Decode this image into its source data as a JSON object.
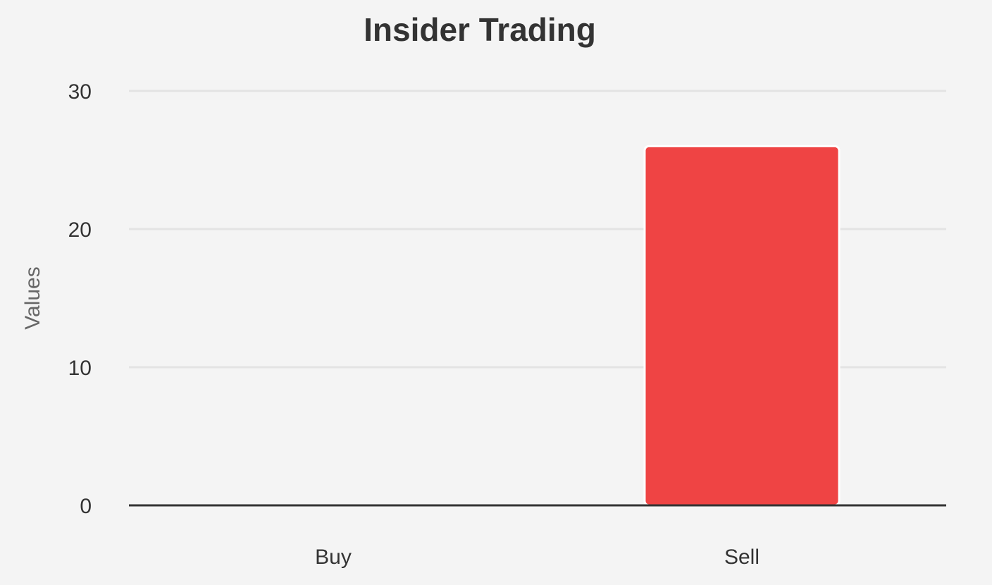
{
  "chart_data": {
    "type": "bar",
    "title": "Insider Trading",
    "y_label": "Values",
    "categories": [
      "Buy",
      "Sell"
    ],
    "values": [
      0,
      26
    ],
    "color": "#ef4444",
    "ylim": [
      0,
      30
    ],
    "yticks": [
      0,
      10,
      20,
      30
    ],
    "grid": true
  }
}
